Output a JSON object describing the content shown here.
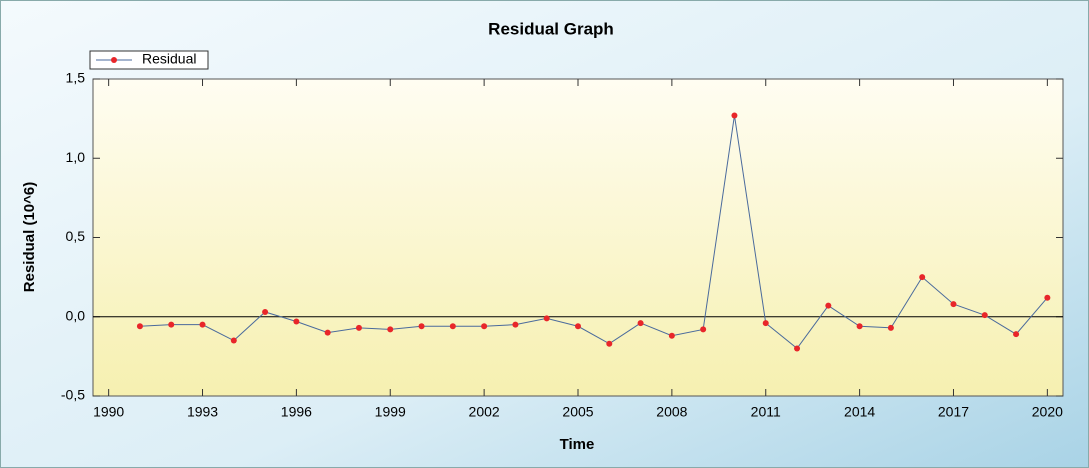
{
  "chart_data": {
    "type": "line",
    "title": "Residual Graph",
    "xlabel": "Time",
    "ylabel": "Residual (10^6)",
    "x": [
      1991,
      1992,
      1993,
      1994,
      1995,
      1996,
      1997,
      1998,
      1999,
      2000,
      2001,
      2002,
      2003,
      2004,
      2005,
      2006,
      2007,
      2008,
      2009,
      2010,
      2011,
      2012,
      2013,
      2014,
      2015,
      2016,
      2017,
      2018,
      2019,
      2020
    ],
    "series": [
      {
        "name": "Residual",
        "color": "#4a6a9c",
        "marker_color": "#e8262a",
        "values": [
          -0.06,
          -0.05,
          -0.05,
          -0.15,
          0.03,
          -0.03,
          -0.1,
          -0.07,
          -0.08,
          -0.06,
          -0.06,
          -0.06,
          -0.05,
          -0.01,
          -0.06,
          -0.17,
          -0.04,
          -0.12,
          -0.08,
          1.27,
          -0.04,
          -0.2,
          0.07,
          -0.06,
          -0.07,
          0.25,
          0.08,
          0.01,
          -0.11,
          0.12
        ]
      }
    ],
    "xlim": [
      1989.5,
      2020.5
    ],
    "xticks": [
      1990,
      1993,
      1996,
      1999,
      2002,
      2005,
      2008,
      2011,
      2014,
      2017,
      2020
    ],
    "ylim": [
      -0.5,
      1.5
    ],
    "yticks": [
      {
        "value": -0.5,
        "label": "-0,5"
      },
      {
        "value": 0,
        "label": "0,0"
      },
      {
        "value": 0.5,
        "label": "0,5"
      },
      {
        "value": 1,
        "label": "1,0"
      },
      {
        "value": 1.5,
        "label": "1,5"
      }
    ],
    "legend": "top-left"
  }
}
